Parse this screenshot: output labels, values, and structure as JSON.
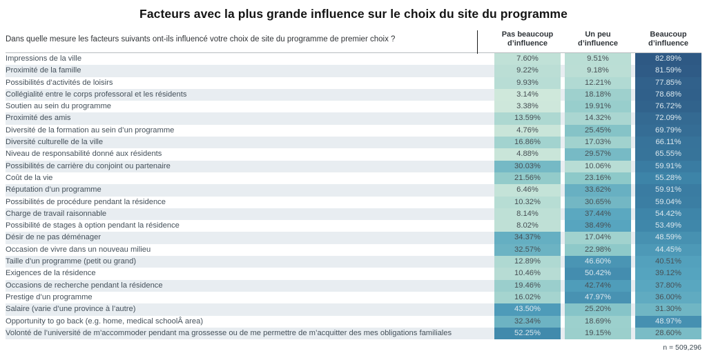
{
  "title": "Facteurs avec la plus grande influence sur le choix du site du programme",
  "question": "Dans quelle mesure les facteurs suivants ont-ils influencé votre choix de site du programme de premier choix ?",
  "footnote": "n = 509,296",
  "colors": {
    "title_text": "#141414",
    "label_text": "#44505a",
    "stripe": "#e8edf1",
    "header_rule": "#b7bcbf"
  },
  "chart_data": {
    "type": "heatmap",
    "value_unit": "percent",
    "columns": [
      "Pas beaucoup d’influence",
      "Un peu d’influence",
      "Beaucoup d’influence"
    ],
    "rows": [
      {
        "label": "Impressions de la ville",
        "values": [
          7.6,
          9.51,
          82.89
        ]
      },
      {
        "label": "Proximité de la famille",
        "values": [
          9.22,
          9.18,
          81.59
        ]
      },
      {
        "label": "Possibilités d’activités de loisirs",
        "values": [
          9.93,
          12.21,
          77.85
        ]
      },
      {
        "label": "Collégialité entre le corps professoral et les résidents",
        "values": [
          3.14,
          18.18,
          78.68
        ]
      },
      {
        "label": "Soutien au sein du programme",
        "values": [
          3.38,
          19.91,
          76.72
        ]
      },
      {
        "label": "Proximité des amis",
        "values": [
          13.59,
          14.32,
          72.09
        ]
      },
      {
        "label": "Diversité de la formation au sein d’un programme",
        "values": [
          4.76,
          25.45,
          69.79
        ]
      },
      {
        "label": "Diversité culturelle de la ville",
        "values": [
          16.86,
          17.03,
          66.11
        ]
      },
      {
        "label": "Niveau de responsabilité donné aux résidents",
        "values": [
          4.88,
          29.57,
          65.55
        ]
      },
      {
        "label": "Possibilités de carrière du conjoint ou partenaire",
        "values": [
          30.03,
          10.06,
          59.91
        ]
      },
      {
        "label": "Coût de la vie",
        "values": [
          21.56,
          23.16,
          55.28
        ]
      },
      {
        "label": "Réputation d’un programme",
        "values": [
          6.46,
          33.62,
          59.91
        ]
      },
      {
        "label": "Possibilités de procédure pendant la résidence",
        "values": [
          10.32,
          30.65,
          59.04
        ]
      },
      {
        "label": "Charge de travail raisonnable",
        "values": [
          8.14,
          37.44,
          54.42
        ]
      },
      {
        "label": "Possibilité de stages à option pendant la résidence",
        "values": [
          8.02,
          38.49,
          53.49
        ]
      },
      {
        "label": "Désir de ne pas déménager",
        "values": [
          34.37,
          17.04,
          48.59
        ]
      },
      {
        "label": "Occasion de vivre dans un nouveau milieu",
        "values": [
          32.57,
          22.98,
          44.45
        ]
      },
      {
        "label": "Taille d’un programme (petit ou grand)",
        "values": [
          12.89,
          46.6,
          40.51
        ]
      },
      {
        "label": "Exigences de la résidence",
        "values": [
          10.46,
          50.42,
          39.12
        ]
      },
      {
        "label": "Occasions de recherche pendant la résidence",
        "values": [
          19.46,
          42.74,
          37.8
        ]
      },
      {
        "label": "Prestige d’un programme",
        "values": [
          16.02,
          47.97,
          36.0
        ]
      },
      {
        "label": "Salaire (varie d’une province à l’autre)",
        "values": [
          43.5,
          25.2,
          31.3
        ]
      },
      {
        "label": "Opportunity to go back (e.g. home, medical schoolÂ area)",
        "values": [
          32.34,
          18.69,
          48.97
        ]
      },
      {
        "label": "Volonté de l’université de m’accommoder pendant ma grossesse ou de me permettre de m’acquitter des mes obligations familiales",
        "values": [
          52.25,
          19.15,
          28.6
        ]
      }
    ],
    "color_scale": {
      "domain": [
        3,
        83
      ],
      "stops": [
        {
          "t": 0.0,
          "color": "#cfe8db"
        },
        {
          "t": 0.25,
          "color": "#8ec9c9"
        },
        {
          "t": 0.45,
          "color": "#55a4bf"
        },
        {
          "t": 0.65,
          "color": "#3d84a8"
        },
        {
          "t": 1.0,
          "color": "#2e5984"
        }
      ],
      "light_text_threshold": 43,
      "light_text_color": "#dce8ee",
      "dark_text_color": "#474f54"
    }
  }
}
